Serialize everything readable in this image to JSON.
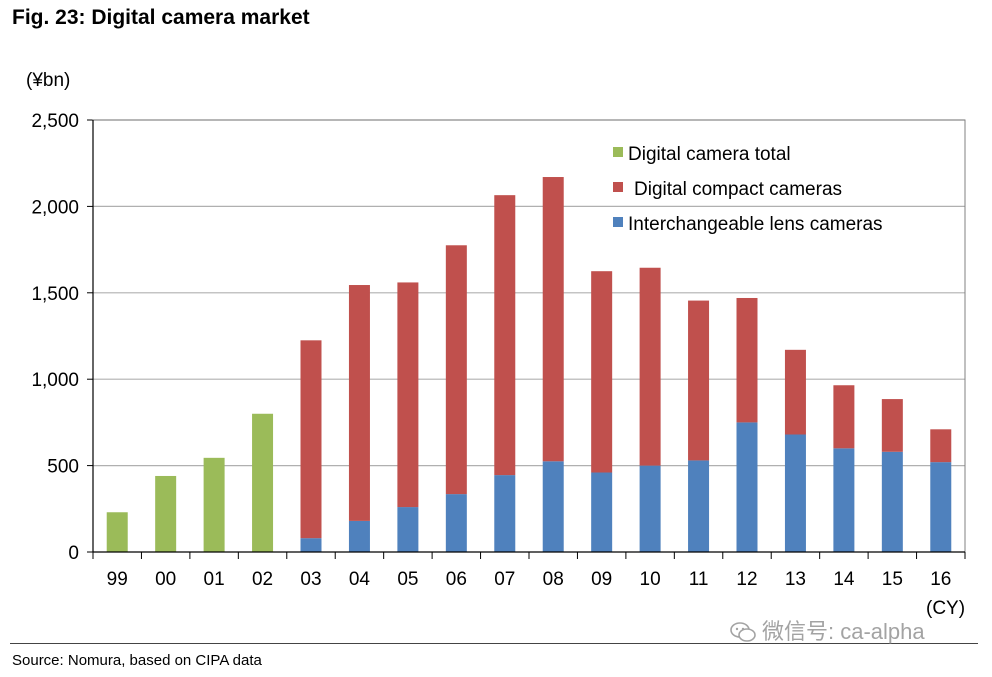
{
  "header": {
    "title": "Fig. 23: Digital camera market"
  },
  "footer": {
    "source": "Source: Nomura, based on CIPA data"
  },
  "watermark": {
    "text": "微信号: ca-alpha",
    "icon": "wechat-icon"
  },
  "colors": {
    "total": "#9bbb59",
    "compact": "#c0504d",
    "ilc": "#4f81bd",
    "grid": "#b0b0b0",
    "axis": "#000000"
  },
  "chart_data": {
    "type": "bar",
    "stacked": true,
    "title": "Fig. 23: Digital camera market",
    "ylabel": "(¥bn)",
    "xlabel": "(CY)",
    "ylim": [
      0,
      2500
    ],
    "yticks": [
      0,
      500,
      1000,
      1500,
      2000,
      2500
    ],
    "ytick_labels": [
      "0",
      "500",
      "1,000",
      "1,500",
      "2,000",
      "2,500"
    ],
    "grid": true,
    "legend_position": "top-right",
    "categories": [
      "99",
      "00",
      "01",
      "02",
      "03",
      "04",
      "05",
      "06",
      "07",
      "08",
      "09",
      "10",
      "11",
      "12",
      "13",
      "14",
      "15",
      "16"
    ],
    "series": [
      {
        "name": "Digital camera total",
        "color": "#9bbb59",
        "values": [
          230,
          440,
          545,
          800,
          0,
          0,
          0,
          0,
          0,
          0,
          0,
          0,
          0,
          0,
          0,
          0,
          0,
          0
        ]
      },
      {
        "name": "Interchangeable lens cameras",
        "color": "#4f81bd",
        "values": [
          0,
          0,
          0,
          0,
          80,
          180,
          260,
          335,
          445,
          525,
          460,
          500,
          530,
          750,
          680,
          600,
          580,
          520
        ]
      },
      {
        "name": "Digital compact cameras",
        "color": "#c0504d",
        "values": [
          0,
          0,
          0,
          0,
          1145,
          1365,
          1300,
          1440,
          1620,
          1645,
          1165,
          1145,
          925,
          720,
          490,
          365,
          305,
          190
        ]
      }
    ],
    "legend_order": [
      "Digital camera total",
      "Digital compact cameras",
      "Interchangeable lens cameras"
    ]
  }
}
